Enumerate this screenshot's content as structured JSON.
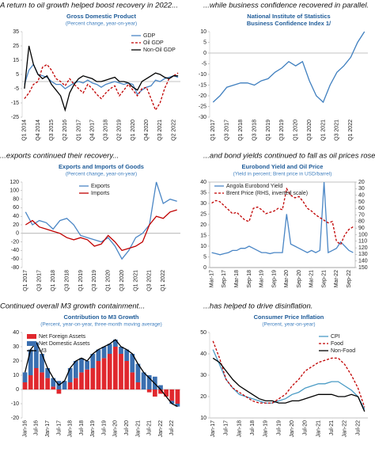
{
  "chart_data": [
    {
      "type": "line",
      "caption": "A return to oil growth helped boost recovery in 2022...",
      "title": "Gross Domestic Product",
      "subtitle": "(Percent change, year-on-year)",
      "categories": [
        "Q1 2014",
        null,
        null,
        "Q4 2014",
        null,
        null,
        "Q3 2015",
        null,
        null,
        "Q2 2016",
        null,
        null,
        "Q1 2017",
        null,
        null,
        "Q4 2017",
        null,
        null,
        "Q3 2018",
        null,
        null,
        "Q2 2019",
        null,
        null,
        "Q1 2020",
        null,
        null,
        "Q4 2020",
        null,
        null,
        "Q3 2021",
        null,
        null,
        "Q2 2022",
        null
      ],
      "series": [
        {
          "name": "GDP",
          "color": "#4a86c5",
          "values": [
            -2,
            8,
            12,
            5,
            4,
            3,
            0,
            -2,
            -2,
            -5,
            -3,
            -1,
            0,
            -1,
            1,
            -1,
            -2,
            -4,
            -2,
            -1,
            0,
            -1,
            -2,
            -1,
            -2,
            -9,
            -6,
            -4,
            -3,
            1,
            0,
            2,
            3,
            4,
            3
          ]
        },
        {
          "name": "Oil GDP",
          "color": "#c00000",
          "dash": true,
          "values": [
            -12,
            -8,
            -2,
            0,
            10,
            12,
            8,
            2,
            0,
            -3,
            2,
            -2,
            -5,
            -8,
            -2,
            -5,
            -9,
            -12,
            -8,
            -5,
            -3,
            -10,
            -6,
            -2,
            -6,
            -10,
            -5,
            -4,
            -12,
            -20,
            -15,
            -5,
            2,
            4,
            6
          ]
        },
        {
          "name": "Non-Oil GDP",
          "color": "#000000",
          "values": [
            -5,
            25,
            12,
            5,
            2,
            4,
            -2,
            -6,
            -10,
            -20,
            -8,
            -2,
            2,
            4,
            3,
            2,
            0,
            0,
            1,
            2,
            3,
            0,
            0,
            -1,
            -4,
            -6,
            0,
            2,
            4,
            6,
            5,
            3,
            2,
            4,
            4
          ]
        }
      ],
      "ylim": [
        -25,
        35
      ],
      "yticks": [
        -25,
        -15,
        -5,
        5,
        15,
        25,
        35
      ],
      "legend": "top-right"
    },
    {
      "type": "line",
      "caption": "...while business confidence recovered in parallel.",
      "title": "National Institute of Statistics",
      "subtitle": "Business Confidence Index 1/",
      "categories": [
        "Q1 2017",
        null,
        "Q3 2017",
        null,
        "Q1 2018",
        null,
        "Q3 2018",
        null,
        "Q1 2019",
        null,
        "Q3 2019",
        null,
        "Q1 2020",
        null,
        "Q3 2020",
        null,
        "Q1 2021",
        null,
        "Q3 2021",
        null,
        "Q1 2022",
        null,
        null
      ],
      "values": [
        -23,
        -20,
        -16,
        -15,
        -14,
        -14,
        -15,
        -13,
        -12,
        -9,
        -7,
        -4,
        -6,
        -4,
        -13,
        -20,
        -23,
        -15,
        -9,
        -6,
        -2,
        5,
        10
      ],
      "color": "#3f7fbf",
      "ylim": [
        -30,
        10
      ],
      "yticks": [
        -30,
        -25,
        -20,
        -15,
        -10,
        -5,
        0,
        5,
        10
      ]
    },
    {
      "type": "line",
      "caption": "...exports continued their recovery...",
      "title": "Exports and Imports of Goods",
      "subtitle": "(Percent change, year-on-year)",
      "categories": [
        "Q1 2017",
        null,
        "Q3 2017",
        null,
        "Q1 2018",
        null,
        "Q3 2018",
        null,
        "Q1 2019",
        null,
        "Q3 2019",
        null,
        "Q1 2020",
        null,
        "Q3 2020",
        null,
        "Q1 2021",
        null,
        "Q3 2021",
        null,
        "Q1 2022",
        null,
        null
      ],
      "series": [
        {
          "name": "Exports",
          "color": "#4a86c5",
          "values": [
            50,
            20,
            30,
            25,
            10,
            30,
            35,
            20,
            -5,
            -10,
            -15,
            -20,
            -10,
            -30,
            -60,
            -40,
            -10,
            0,
            20,
            120,
            70,
            80,
            75
          ]
        },
        {
          "name": "Imports",
          "color": "#c00000",
          "values": [
            20,
            30,
            15,
            10,
            5,
            0,
            -10,
            -15,
            -10,
            -15,
            -30,
            -25,
            -5,
            -20,
            -40,
            -35,
            -30,
            -20,
            20,
            40,
            35,
            50,
            55
          ]
        }
      ],
      "ylim": [
        -80,
        120
      ],
      "yticks": [
        -80,
        -60,
        -40,
        -20,
        0,
        20,
        40,
        60,
        80,
        100,
        120
      ],
      "legend": "top-center"
    },
    {
      "type": "line",
      "caption": "...and bond yields continued to fall as oil prices rose.",
      "title": "Eurobond Yield and Oil Price",
      "subtitle": "(Yield in percent; Brent price in USD/barrel)",
      "categories": [
        "Mar-17",
        null,
        null,
        "Sep-17",
        null,
        null,
        "Mar-18",
        null,
        null,
        "Sep-18",
        null,
        null,
        "Mar-19",
        null,
        null,
        "Sep-19",
        null,
        null,
        "Mar-20",
        null,
        null,
        "Sep-20",
        null,
        null,
        "Mar-21",
        null,
        null,
        "Sep-21",
        null,
        null,
        "Mar-22",
        null,
        null,
        "Sep-22",
        null
      ],
      "series": [
        {
          "name": "Angola Eurobond Yield",
          "color": "#4a86c5",
          "values": [
            7,
            6.5,
            6,
            6.5,
            7,
            8,
            8,
            9,
            9,
            10,
            9,
            8,
            7,
            7,
            6.5,
            7,
            7,
            7,
            25,
            11,
            10,
            9,
            8,
            7,
            8,
            7,
            8,
            40,
            7,
            8,
            9,
            12,
            10,
            8,
            7
          ]
        },
        {
          "name": "Brent Price (RHS, inverted scale)",
          "color": "#c00000",
          "dash": true,
          "axis": "y2",
          "values": [
            52,
            48,
            50,
            56,
            62,
            68,
            66,
            72,
            78,
            80,
            60,
            58,
            62,
            68,
            66,
            64,
            60,
            62,
            30,
            40,
            44,
            42,
            50,
            60,
            64,
            70,
            74,
            78,
            82,
            80,
            110,
            115,
            100,
            92,
            88
          ]
        }
      ],
      "ylim": [
        0,
        40
      ],
      "yticks": [
        0,
        5,
        10,
        15,
        20,
        25,
        30,
        35,
        40
      ],
      "y2lim": [
        150,
        20
      ],
      "y2ticks": [
        20,
        30,
        40,
        50,
        60,
        70,
        80,
        90,
        100,
        110,
        120,
        130,
        140,
        150
      ],
      "legend": "top-left",
      "frame": true
    },
    {
      "type": "combo",
      "caption": "Continued overall M3 growth containment...",
      "title": "Contribution to M3 Growth",
      "subtitle": "(Percent, year-on-year, three-month moving average)",
      "categories": [
        "Jan-16",
        null,
        "Jul-16",
        null,
        "Jan-17",
        null,
        "Jul-17",
        null,
        "Jan-18",
        null,
        "Jul-18",
        null,
        "Jan-19",
        null,
        "Jul-19",
        null,
        "Jan-20",
        null,
        "Jul-20",
        null,
        "Jan-21",
        null,
        "Jul-21",
        null,
        "Jan-22",
        null,
        "Jul-22",
        null
      ],
      "series": [
        {
          "name": "Net Foreign Assets",
          "color": "#e0282e",
          "kind": "bar",
          "values": [
            5,
            10,
            15,
            12,
            8,
            2,
            -3,
            0,
            5,
            8,
            12,
            14,
            15,
            20,
            22,
            25,
            30,
            25,
            20,
            12,
            5,
            0,
            -2,
            -5,
            -3,
            -5,
            -8,
            -10
          ]
        },
        {
          "name": "Net Domestic Assets",
          "color": "#3a6fb0",
          "kind": "bar",
          "values": [
            7,
            18,
            18,
            13,
            7,
            6,
            6,
            6,
            10,
            12,
            10,
            6,
            10,
            8,
            8,
            7,
            5,
            5,
            8,
            13,
            13,
            12,
            10,
            9,
            3,
            0,
            -2,
            -2
          ]
        },
        {
          "name": "M3",
          "color": "#000000",
          "kind": "line",
          "values": [
            12,
            28,
            33,
            25,
            15,
            8,
            3,
            6,
            15,
            20,
            22,
            20,
            25,
            28,
            30,
            32,
            35,
            30,
            28,
            25,
            18,
            12,
            8,
            4,
            0,
            -5,
            -10,
            -12
          ]
        }
      ],
      "ylim": [
        -20,
        40
      ],
      "yticks": [
        -20,
        -10,
        0,
        10,
        20,
        30,
        40
      ],
      "legend": "top-left"
    },
    {
      "type": "line",
      "caption": "...has helped to drive disinflation.",
      "title": "Consumer Price Inflation",
      "subtitle": "(Percent, year-on-year)",
      "categories": [
        "Jan-17",
        null,
        "Jul-17",
        null,
        "Jan-18",
        null,
        "Jul-18",
        null,
        "Jan-19",
        null,
        "Jul-19",
        null,
        "Jan-20",
        null,
        "Jul-20",
        null,
        "Jan-21",
        null,
        "Jul-21",
        null,
        "Jan-22",
        null,
        "Jul-22",
        null
      ],
      "series": [
        {
          "name": "CPI",
          "color": "#4a9bc5",
          "values": [
            42,
            35,
            28,
            24,
            21,
            20,
            19,
            18,
            17,
            17,
            18,
            19,
            21,
            22,
            24,
            25,
            26,
            26,
            27,
            27,
            25,
            23,
            20,
            14
          ]
        },
        {
          "name": "Food",
          "color": "#c00000",
          "dash": true,
          "values": [
            46,
            38,
            28,
            24,
            22,
            20,
            18,
            17,
            17,
            17,
            19,
            21,
            25,
            28,
            32,
            34,
            36,
            37,
            38,
            38,
            35,
            30,
            24,
            15
          ]
        },
        {
          "name": "Non-Food",
          "color": "#000000",
          "values": [
            38,
            36,
            32,
            28,
            25,
            23,
            21,
            19,
            18,
            18,
            17,
            17,
            18,
            18,
            19,
            20,
            21,
            21,
            21,
            20,
            20,
            21,
            20,
            13
          ]
        }
      ],
      "ylim": [
        10,
        50
      ],
      "yticks": [
        10,
        20,
        30,
        40,
        50
      ],
      "legend": "top-right"
    }
  ]
}
